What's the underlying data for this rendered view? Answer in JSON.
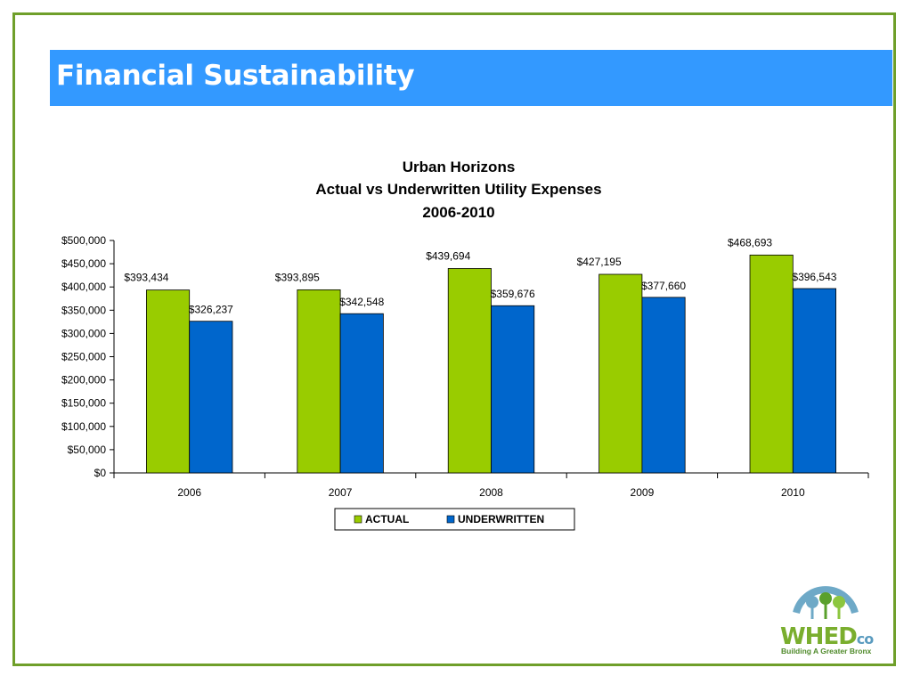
{
  "slide": {
    "title": "Financial Sustainability"
  },
  "logo": {
    "name": "WHED",
    "suffix": "co",
    "tagline": "Building A Greater Bronx"
  },
  "chart_data": {
    "type": "bar",
    "title": [
      "Urban Horizons",
      "Actual vs Underwritten Utility Expenses",
      "2006-2010"
    ],
    "xlabel": "",
    "ylabel": "",
    "categories": [
      "2006",
      "2007",
      "2008",
      "2009",
      "2010"
    ],
    "series": [
      {
        "name": "ACTUAL",
        "color": "#99cc00",
        "values": [
          393434,
          393895,
          439694,
          427195,
          468693
        ],
        "labels": [
          "$393,434",
          "$393,895",
          "$439,694",
          "$427,195",
          "$468,693"
        ]
      },
      {
        "name": "UNDERWRITTEN",
        "color": "#0066cc",
        "values": [
          326237,
          342548,
          359676,
          377660,
          396543
        ],
        "labels": [
          "$326,237",
          "$342,548",
          "$359,676",
          "$377,660",
          "$396,543"
        ]
      }
    ],
    "ylim": [
      0,
      500000
    ],
    "yticks": [
      0,
      50000,
      100000,
      150000,
      200000,
      250000,
      300000,
      350000,
      400000,
      450000,
      500000
    ],
    "ytick_labels": [
      "$0",
      "$50,000",
      "$100,000",
      "$150,000",
      "$200,000",
      "$250,000",
      "$300,000",
      "$350,000",
      "$400,000",
      "$450,000",
      "$500,000"
    ],
    "grid": false,
    "legend_position": "bottom"
  }
}
